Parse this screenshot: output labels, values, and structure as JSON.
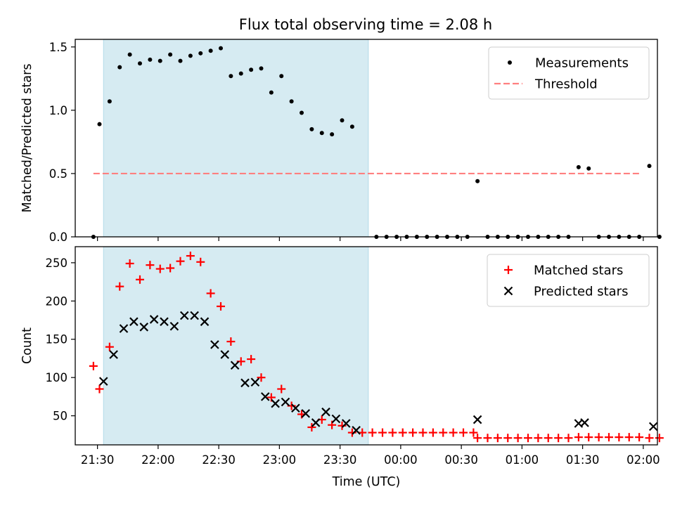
{
  "figure": {
    "title": "Flux total observing time = 2.08 h"
  },
  "chart_data": [
    {
      "type": "scatter",
      "panel": "top",
      "xlabel": "",
      "ylabel": "Matched/Predicted stars",
      "x_type": "time",
      "x_range": [
        "21:19",
        "02:07"
      ],
      "ylim": [
        0,
        1.56
      ],
      "y_ticks": [
        0.0,
        0.5,
        1.0,
        1.5
      ],
      "y_tick_labels": [
        "0.0",
        "0.5",
        "1.0",
        "1.5"
      ],
      "grid": false,
      "legend": "top-right",
      "shaded_interval": {
        "start": "21:33",
        "end": "23:44",
        "color": "#add8e6"
      },
      "threshold": {
        "name": "Threshold",
        "value": 0.5,
        "x_start": "21:28",
        "x_end": "01:59",
        "color": "#ff7f7f",
        "style": "dashed"
      },
      "series": [
        {
          "name": "Measurements",
          "color": "#000000",
          "marker": "dot",
          "points": [
            [
              "21:28",
              0.0
            ],
            [
              "21:31",
              0.89
            ],
            [
              "21:36",
              1.07
            ],
            [
              "21:41",
              1.34
            ],
            [
              "21:46",
              1.44
            ],
            [
              "21:51",
              1.37
            ],
            [
              "21:56",
              1.4
            ],
            [
              "22:01",
              1.39
            ],
            [
              "22:06",
              1.44
            ],
            [
              "22:11",
              1.39
            ],
            [
              "22:16",
              1.43
            ],
            [
              "22:21",
              1.45
            ],
            [
              "22:26",
              1.47
            ],
            [
              "22:31",
              1.49
            ],
            [
              "22:36",
              1.27
            ],
            [
              "22:41",
              1.29
            ],
            [
              "22:46",
              1.32
            ],
            [
              "22:51",
              1.33
            ],
            [
              "22:56",
              1.14
            ],
            [
              "23:01",
              1.27
            ],
            [
              "23:06",
              1.07
            ],
            [
              "23:11",
              0.98
            ],
            [
              "23:16",
              0.85
            ],
            [
              "23:21",
              0.82
            ],
            [
              "23:26",
              0.81
            ],
            [
              "23:31",
              0.92
            ],
            [
              "23:36",
              0.87
            ],
            [
              "23:48",
              0.0
            ],
            [
              "23:53",
              0.0
            ],
            [
              "23:58",
              0.0
            ],
            [
              "00:03",
              0.0
            ],
            [
              "00:08",
              0.0
            ],
            [
              "00:13",
              0.0
            ],
            [
              "00:18",
              0.0
            ],
            [
              "00:23",
              0.0
            ],
            [
              "00:28",
              0.0
            ],
            [
              "00:33",
              0.0
            ],
            [
              "00:38",
              0.44
            ],
            [
              "00:43",
              0.0
            ],
            [
              "00:48",
              0.0
            ],
            [
              "00:53",
              0.0
            ],
            [
              "00:58",
              0.0
            ],
            [
              "01:03",
              0.0
            ],
            [
              "01:08",
              0.0
            ],
            [
              "01:13",
              0.0
            ],
            [
              "01:18",
              0.0
            ],
            [
              "01:23",
              0.0
            ],
            [
              "01:28",
              0.55
            ],
            [
              "01:33",
              0.54
            ],
            [
              "01:38",
              0.0
            ],
            [
              "01:43",
              0.0
            ],
            [
              "01:48",
              0.0
            ],
            [
              "01:53",
              0.0
            ],
            [
              "01:58",
              0.0
            ],
            [
              "02:03",
              0.56
            ],
            [
              "02:08",
              0.0
            ]
          ]
        }
      ]
    },
    {
      "type": "scatter",
      "panel": "bottom",
      "xlabel": "Time (UTC)",
      "ylabel": "Count",
      "x_type": "time",
      "x_range": [
        "21:19",
        "02:07"
      ],
      "ylim": [
        12,
        271
      ],
      "y_ticks": [
        50,
        100,
        150,
        200,
        250
      ],
      "y_tick_labels": [
        "50",
        "100",
        "150",
        "200",
        "250"
      ],
      "x_ticks": [
        "21:30",
        "22:00",
        "22:30",
        "23:00",
        "23:30",
        "00:00",
        "00:30",
        "01:00",
        "01:30",
        "02:00"
      ],
      "x_tick_labels": [
        "21:30",
        "22:00",
        "22:30",
        "23:00",
        "23:30",
        "00:00",
        "00:30",
        "01:00",
        "01:30",
        "02:00"
      ],
      "grid": false,
      "legend": "top-right",
      "shaded_interval": {
        "start": "21:33",
        "end": "23:44",
        "color": "#add8e6"
      },
      "series": [
        {
          "name": "Matched stars",
          "color": "#ff0000",
          "marker": "plus",
          "points": [
            [
              "21:28",
              115
            ],
            [
              "21:31",
              85
            ],
            [
              "21:36",
              140
            ],
            [
              "21:41",
              219
            ],
            [
              "21:46",
              249
            ],
            [
              "21:51",
              228
            ],
            [
              "21:56",
              247
            ],
            [
              "22:01",
              242
            ],
            [
              "22:06",
              243
            ],
            [
              "22:11",
              252
            ],
            [
              "22:16",
              259
            ],
            [
              "22:21",
              251
            ],
            [
              "22:26",
              210
            ],
            [
              "22:31",
              193
            ],
            [
              "22:36",
              147
            ],
            [
              "22:41",
              121
            ],
            [
              "22:46",
              124
            ],
            [
              "22:51",
              100
            ],
            [
              "22:56",
              74
            ],
            [
              "23:01",
              85
            ],
            [
              "23:06",
              63
            ],
            [
              "23:11",
              52
            ],
            [
              "23:16",
              35
            ],
            [
              "23:21",
              45
            ],
            [
              "23:26",
              38
            ],
            [
              "23:31",
              37
            ],
            [
              "23:36",
              28
            ],
            [
              "23:41",
              28
            ],
            [
              "23:46",
              28
            ],
            [
              "23:51",
              28
            ],
            [
              "23:56",
              28
            ],
            [
              "00:01",
              28
            ],
            [
              "00:06",
              28
            ],
            [
              "00:11",
              28
            ],
            [
              "00:16",
              28
            ],
            [
              "00:21",
              28
            ],
            [
              "00:26",
              28
            ],
            [
              "00:31",
              28
            ],
            [
              "00:36",
              28
            ],
            [
              "00:38",
              21
            ],
            [
              "00:43",
              21
            ],
            [
              "00:48",
              21
            ],
            [
              "00:53",
              21
            ],
            [
              "00:58",
              21
            ],
            [
              "01:03",
              21
            ],
            [
              "01:08",
              21
            ],
            [
              "01:13",
              21
            ],
            [
              "01:18",
              21
            ],
            [
              "01:23",
              21
            ],
            [
              "01:28",
              22
            ],
            [
              "01:33",
              22
            ],
            [
              "01:38",
              22
            ],
            [
              "01:43",
              22
            ],
            [
              "01:48",
              22
            ],
            [
              "01:53",
              22
            ],
            [
              "01:58",
              22
            ],
            [
              "02:03",
              21
            ],
            [
              "02:08",
              21
            ]
          ]
        },
        {
          "name": "Predicted stars",
          "color": "#000000",
          "marker": "x",
          "points": [
            [
              "21:33",
              95
            ],
            [
              "21:38",
              130
            ],
            [
              "21:43",
              164
            ],
            [
              "21:48",
              173
            ],
            [
              "21:53",
              166
            ],
            [
              "21:58",
              176
            ],
            [
              "22:03",
              173
            ],
            [
              "22:08",
              167
            ],
            [
              "22:13",
              181
            ],
            [
              "22:18",
              181
            ],
            [
              "22:23",
              173
            ],
            [
              "22:28",
              143
            ],
            [
              "22:33",
              130
            ],
            [
              "22:38",
              116
            ],
            [
              "22:43",
              93
            ],
            [
              "22:48",
              94
            ],
            [
              "22:53",
              75
            ],
            [
              "22:58",
              66
            ],
            [
              "23:03",
              68
            ],
            [
              "23:08",
              60
            ],
            [
              "23:13",
              53
            ],
            [
              "23:18",
              41
            ],
            [
              "23:23",
              55
            ],
            [
              "23:28",
              46
            ],
            [
              "23:33",
              40
            ],
            [
              "23:38",
              31
            ],
            [
              "00:38",
              45
            ],
            [
              "01:28",
              40
            ],
            [
              "01:31",
              41
            ],
            [
              "02:05",
              36
            ]
          ]
        }
      ]
    }
  ]
}
